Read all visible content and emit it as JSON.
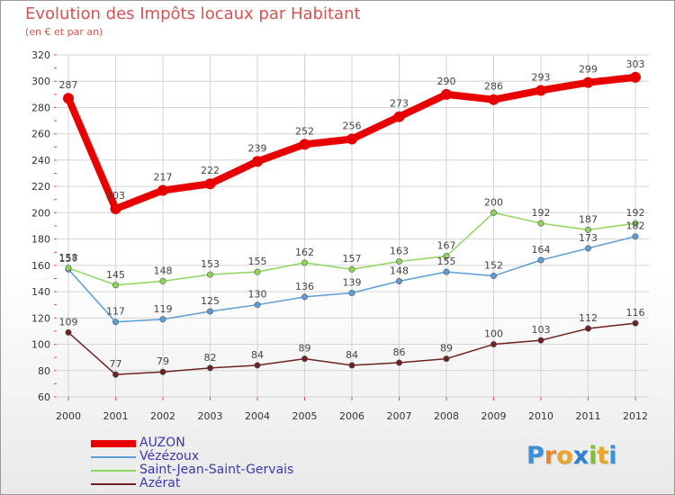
{
  "header": {
    "title": "Evolution des Impôts locaux par Habitant",
    "subtitle": "(en € et par an)"
  },
  "logo": {
    "letters": [
      "P",
      "r",
      "o",
      "x",
      "i",
      "t",
      "i"
    ],
    "colors": [
      "#3d8fd6",
      "#e8882c",
      "#e8a52c",
      "#2f7fd0",
      "#7fbf3a",
      "#e8a52c",
      "#3d8fd6"
    ]
  },
  "chart_data": {
    "type": "line",
    "categories": [
      "2000",
      "2001",
      "2002",
      "2003",
      "2004",
      "2005",
      "2006",
      "2007",
      "2008",
      "2009",
      "2010",
      "2011",
      "2012"
    ],
    "ylim": [
      60,
      320
    ],
    "yticks": [
      60,
      80,
      100,
      120,
      140,
      160,
      180,
      200,
      220,
      240,
      260,
      280,
      300,
      320
    ],
    "grid": true,
    "legend_position": "bottom-left",
    "series": [
      {
        "name": "AUZON",
        "color": "#e80000",
        "values": [
          287,
          203,
          217,
          222,
          239,
          252,
          256,
          273,
          290,
          286,
          293,
          299,
          303
        ]
      },
      {
        "name": "Vézézoux",
        "color": "#5c9dd6",
        "values": [
          157,
          117,
          119,
          125,
          130,
          136,
          139,
          148,
          155,
          152,
          164,
          173,
          182
        ]
      },
      {
        "name": "Saint-Jean-Saint-Gervais",
        "color": "#8fd65c",
        "values": [
          158,
          145,
          148,
          153,
          155,
          162,
          157,
          163,
          167,
          200,
          192,
          187,
          192
        ]
      },
      {
        "name": "Azérat",
        "color": "#6e2323",
        "values": [
          109,
          77,
          79,
          82,
          84,
          89,
          84,
          86,
          89,
          100,
          103,
          112,
          116
        ]
      }
    ]
  }
}
